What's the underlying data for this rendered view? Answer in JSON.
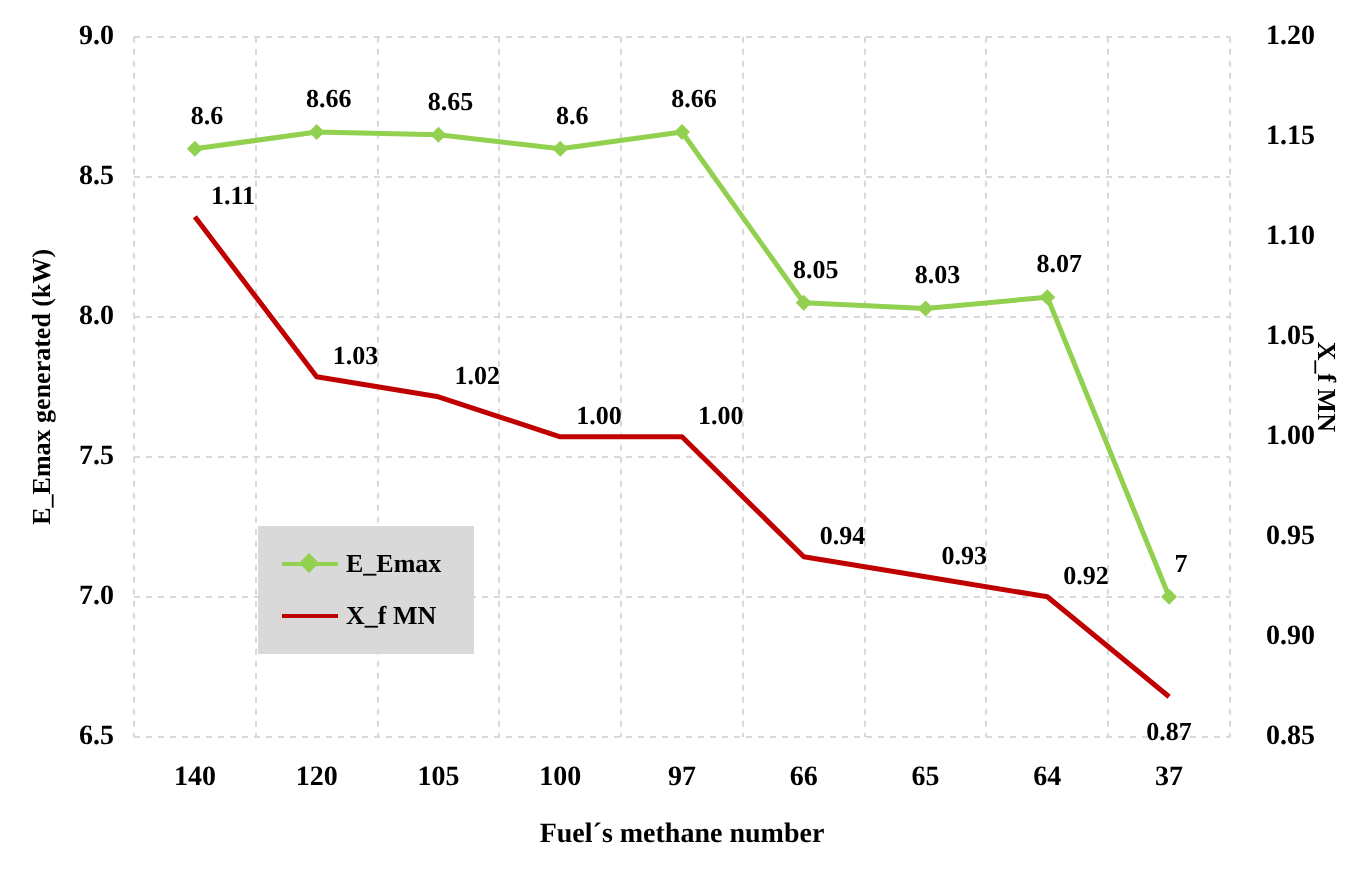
{
  "chart_data": {
    "type": "line",
    "xlabel": "Fuel´s methane number",
    "ylabel": "E_Emax generated (kW)",
    "y2label": "X_f MN",
    "categories": [
      "140",
      "120",
      "105",
      "100",
      "97",
      "66",
      "65",
      "64",
      "37"
    ],
    "series": [
      {
        "name": "E_Emax",
        "color": "#92d050",
        "marker": "diamond",
        "values": [
          8.6,
          8.66,
          8.65,
          8.6,
          8.66,
          8.05,
          8.03,
          8.07,
          7
        ],
        "value_labels": [
          "8.6",
          "8.66",
          "8.65",
          "8.6",
          "8.66",
          "8.05",
          "8.03",
          "8.07",
          "7"
        ]
      },
      {
        "name": "X_f MN",
        "color": "#c00000",
        "marker": "none",
        "axis": "y2",
        "values": [
          1.11,
          1.03,
          1.02,
          1.0,
          1.0,
          0.94,
          0.93,
          0.92,
          0.87
        ],
        "value_labels": [
          "1.11",
          "1.03",
          "1.02",
          "1.00",
          "1.00",
          "0.94",
          "0.93",
          "0.92",
          "0.87"
        ]
      }
    ],
    "ylim": [
      6.5,
      9.0
    ],
    "yticks": [
      {
        "value": 6.5,
        "label": "6.5"
      },
      {
        "value": 7,
        "label": "7.0"
      },
      {
        "value": 7.5,
        "label": "7.5"
      },
      {
        "value": 8,
        "label": "8.0"
      },
      {
        "value": 8.5,
        "label": "8.5"
      },
      {
        "value": 9,
        "label": "9.0"
      }
    ],
    "y2lim": [
      0.85,
      1.2
    ],
    "y2ticks": [
      {
        "value": 0.85,
        "label": "0.85"
      },
      {
        "value": 0.9,
        "label": "0.90"
      },
      {
        "value": 0.95,
        "label": "0.95"
      },
      {
        "value": 1,
        "label": "1.00"
      },
      {
        "value": 1.05,
        "label": "1.05"
      },
      {
        "value": 1.1,
        "label": "1.10"
      },
      {
        "value": 1.15,
        "label": "1.15"
      },
      {
        "value": 1.2,
        "label": "1.20"
      }
    ],
    "grid": true,
    "legend": "bottom left",
    "line_style": "solid"
  }
}
